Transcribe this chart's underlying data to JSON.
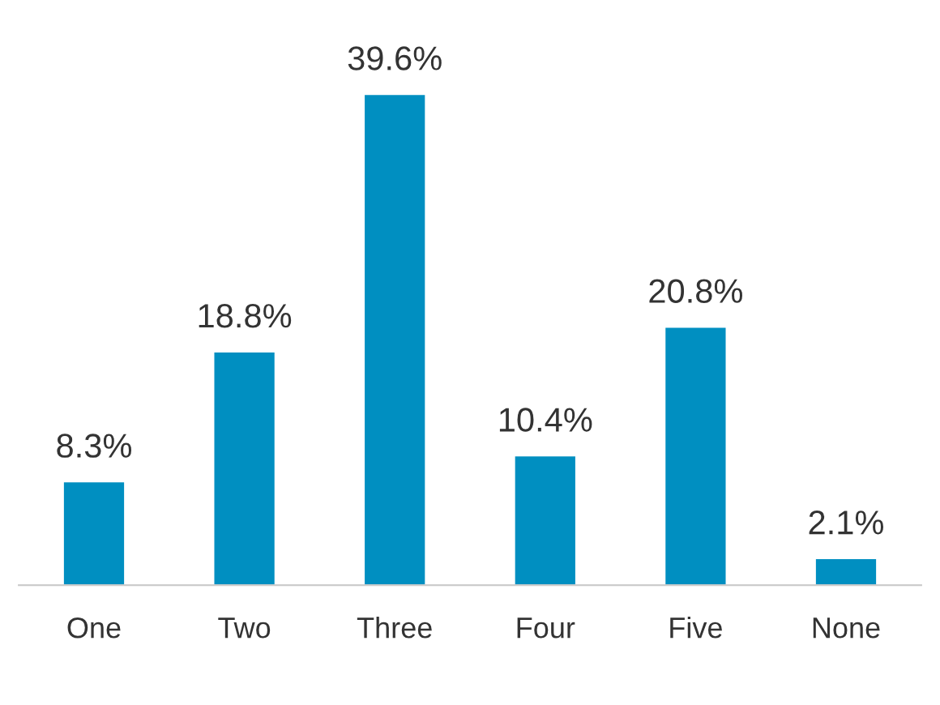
{
  "chart_data": {
    "type": "bar",
    "categories": [
      "One",
      "Two",
      "Three",
      "Four",
      "Five",
      "None"
    ],
    "values": [
      8.3,
      18.8,
      39.6,
      10.4,
      20.8,
      2.1
    ],
    "value_labels": [
      "8.3%",
      "18.8%",
      "39.6%",
      "10.4%",
      "20.8%",
      "2.1%"
    ],
    "color": "#008fc1",
    "grid": false,
    "legend": false
  }
}
